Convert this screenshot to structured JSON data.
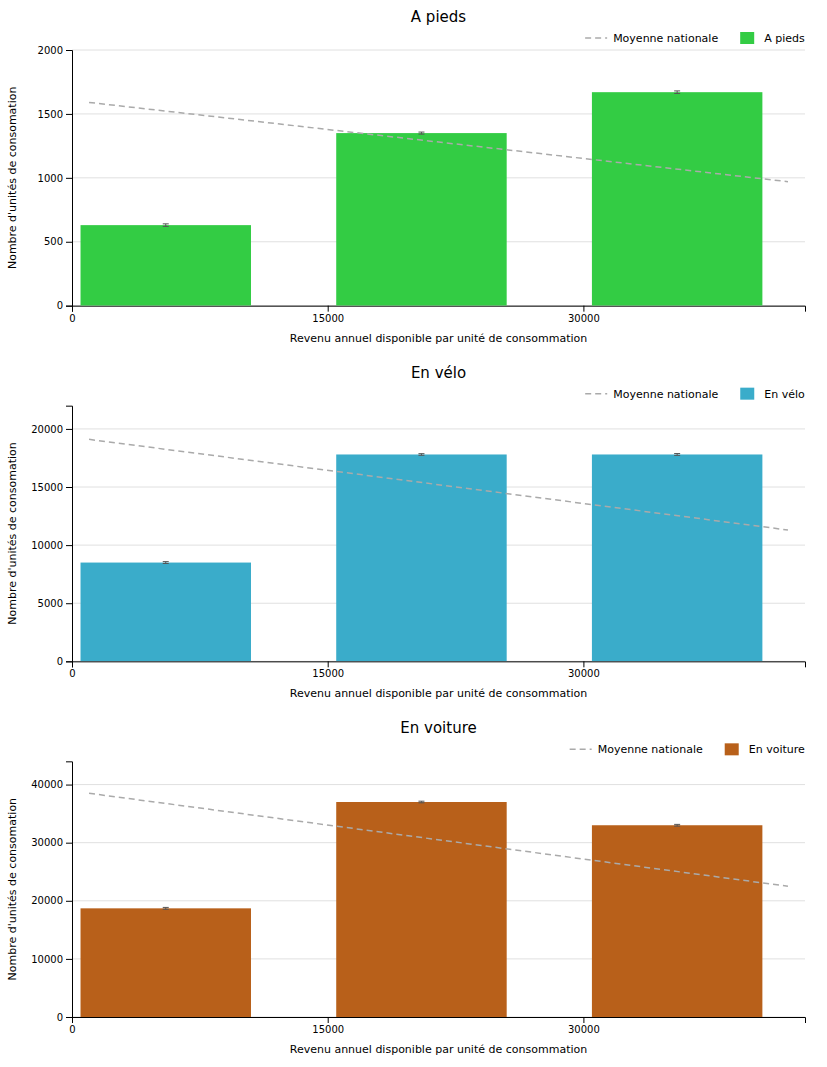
{
  "chart_data": [
    {
      "type": "bar",
      "title": "A pieds",
      "xlabel": "Revenu annuel disponible par unité de consommation",
      "ylabel": "Nombre d'unités de consomation",
      "xlim": [
        0,
        43000
      ],
      "xticks": [
        0,
        15000,
        30000
      ],
      "ylim": [
        0,
        2000
      ],
      "yticks": [
        0,
        500,
        1000,
        1500,
        2000
      ],
      "grid": true,
      "legend": "upper right",
      "series": [
        {
          "name": "Moyenne nationale",
          "type": "line",
          "color": "#aaaaaa",
          "line_style": "dashed",
          "x": [
            1000,
            42000
          ],
          "values": [
            1590,
            970
          ]
        },
        {
          "name": "A pieds",
          "type": "bar",
          "color": "#33cc44",
          "x": [
            5500,
            20500,
            35500
          ],
          "width": 10000,
          "values": [
            630,
            1350,
            1670
          ],
          "errors": [
            10,
            8,
            10
          ]
        }
      ]
    },
    {
      "type": "bar",
      "title": "En vélo",
      "xlabel": "Revenu annuel disponible par unité de consommation",
      "ylabel": "Nombre d'unités de consomation",
      "xlim": [
        0,
        43000
      ],
      "xticks": [
        0,
        15000,
        30000
      ],
      "ylim": [
        0,
        22000
      ],
      "yticks": [
        0,
        5000,
        10000,
        15000,
        20000
      ],
      "grid": true,
      "legend": "upper right",
      "series": [
        {
          "name": "Moyenne nationale",
          "type": "line",
          "color": "#aaaaaa",
          "line_style": "dashed",
          "x": [
            1000,
            42000
          ],
          "values": [
            19100,
            11300
          ]
        },
        {
          "name": "En vélo",
          "type": "bar",
          "color": "#3aacca",
          "x": [
            5500,
            20500,
            35500
          ],
          "width": 10000,
          "values": [
            8500,
            17800,
            17800
          ],
          "errors": [
            80,
            70,
            80
          ]
        }
      ]
    },
    {
      "type": "bar",
      "title": "En voiture",
      "xlabel": "Revenu annuel disponible par unité de consommation",
      "ylabel": "Nombre d'unités de consomation",
      "xlim": [
        0,
        43000
      ],
      "xticks": [
        0,
        15000,
        30000
      ],
      "ylim": [
        0,
        44000
      ],
      "yticks": [
        0,
        10000,
        20000,
        30000,
        40000
      ],
      "grid": true,
      "legend": "upper right",
      "series": [
        {
          "name": "Moyenne nationale",
          "type": "line",
          "color": "#aaaaaa",
          "line_style": "dashed",
          "x": [
            1000,
            42000
          ],
          "values": [
            38500,
            22500
          ]
        },
        {
          "name": "En voiture",
          "type": "bar",
          "color": "#b8601a",
          "x": [
            5500,
            20500,
            35500
          ],
          "width": 10000,
          "values": [
            18700,
            37000,
            33000
          ],
          "errors": [
            160,
            140,
            150
          ]
        }
      ]
    }
  ]
}
